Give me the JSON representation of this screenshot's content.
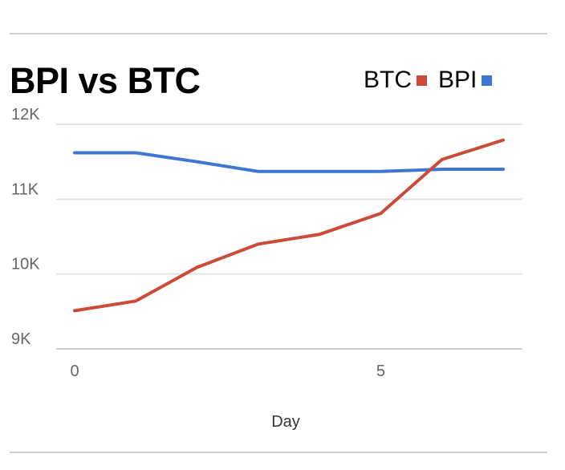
{
  "chart_data": {
    "type": "line",
    "title": "BPI vs BTC",
    "xlabel": "Day",
    "ylabel": "",
    "x": [
      0,
      1,
      2,
      3,
      4,
      5,
      6,
      7
    ],
    "xticks": [
      0,
      5
    ],
    "xlim": [
      0,
      7
    ],
    "ylim": [
      9000,
      12000
    ],
    "yticks": [
      9000,
      10000,
      11000,
      12000
    ],
    "ytick_labels": [
      "9K",
      "10K",
      "11K",
      "12K"
    ],
    "grid": true,
    "legend_position": "top-right",
    "series": [
      {
        "name": "BTC",
        "color": "#cc4a3a",
        "values": [
          9510,
          9640,
          10090,
          10400,
          10530,
          10810,
          11530,
          11790
        ]
      },
      {
        "name": "BPI",
        "color": "#3f76d3",
        "values": [
          11620,
          11620,
          11500,
          11370,
          11370,
          11370,
          11400,
          11400
        ]
      }
    ]
  }
}
